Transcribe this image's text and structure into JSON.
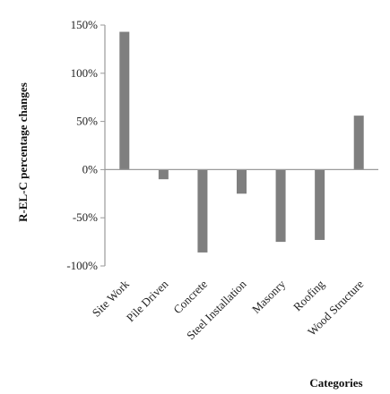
{
  "chart_data": {
    "type": "bar",
    "categories": [
      "Site Work",
      "Pile Driven",
      "Concrete",
      "Steel Installation",
      "Masonry",
      "Roofing",
      "Wood Structure"
    ],
    "values": [
      143,
      -10,
      -86,
      -25,
      -75,
      -73,
      56
    ],
    "ylabel": "R-EL-C percentage changes",
    "xlabel": "Categories",
    "ylim": [
      -100,
      150
    ],
    "yticks": [
      -100,
      -50,
      0,
      50,
      100,
      150
    ],
    "ytick_labels": [
      "-100%",
      "-50%",
      "0%",
      "50%",
      "100%",
      "150%"
    ],
    "grid": false,
    "colors": {
      "bar": "#7f7f7f",
      "axis": "#9a9a9a"
    }
  }
}
